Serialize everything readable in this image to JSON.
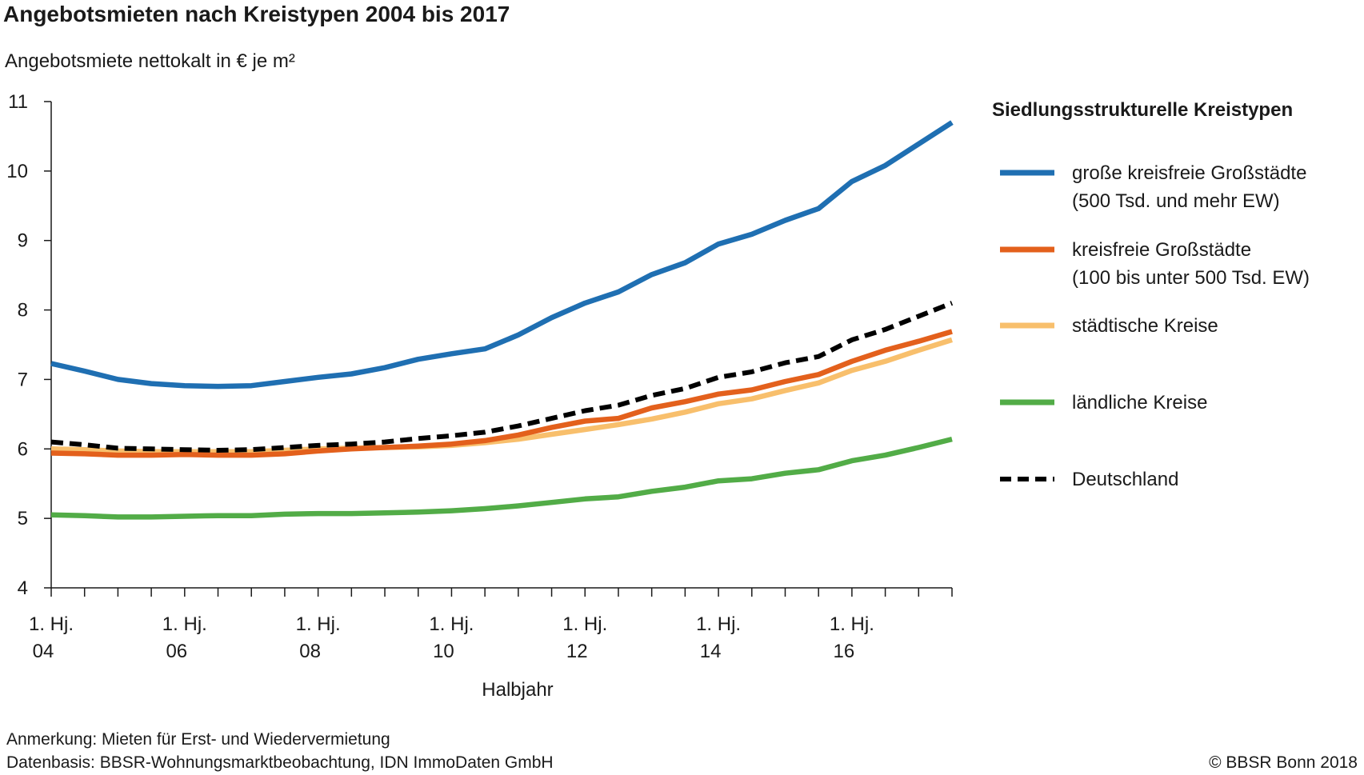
{
  "chart_data": {
    "type": "line",
    "title": "Angebotsmieten nach Kreistypen 2004 bis 2017",
    "ylabel": "Angebotsmiete nettokalt in € je m²",
    "xlabel": "Halbjahr",
    "ylim": [
      4,
      11
    ],
    "yticks": [
      "4",
      "5",
      "6",
      "7",
      "8",
      "9",
      "10",
      "11"
    ],
    "x_period_count": 28,
    "x_tick_labels": [
      {
        "index": 0,
        "line1": "1. Hj.",
        "line2": "04"
      },
      {
        "index": 4,
        "line1": "1. Hj.",
        "line2": "06"
      },
      {
        "index": 8,
        "line1": "1. Hj.",
        "line2": "08"
      },
      {
        "index": 12,
        "line1": "1. Hj.",
        "line2": "10"
      },
      {
        "index": 16,
        "line1": "1. Hj.",
        "line2": "12"
      },
      {
        "index": 20,
        "line1": "1. Hj.",
        "line2": "14"
      },
      {
        "index": 24,
        "line1": "1. Hj.",
        "line2": "16"
      }
    ],
    "grid": false,
    "legend_title": "Siedlungsstrukturelle Kreistypen",
    "legend_position": "right",
    "series": [
      {
        "name": "große kreisfreie Großstädte",
        "name_line2": "(500 Tsd. und mehr EW)",
        "color": "#1f6fb2",
        "style": "solid",
        "values": [
          7.23,
          7.12,
          7.0,
          6.94,
          6.91,
          6.9,
          6.91,
          6.97,
          7.03,
          7.08,
          7.17,
          7.29,
          7.37,
          7.44,
          7.64,
          7.89,
          8.1,
          8.26,
          8.51,
          8.68,
          8.95,
          9.09,
          9.29,
          9.46,
          9.85,
          10.08,
          10.39,
          10.7
        ]
      },
      {
        "name": "kreisfreie Großstädte",
        "name_line2": "(100 bis unter 500 Tsd. EW)",
        "color": "#e3601c",
        "style": "solid",
        "values": [
          5.94,
          5.93,
          5.91,
          5.91,
          5.92,
          5.91,
          5.91,
          5.93,
          5.97,
          6.0,
          6.02,
          6.04,
          6.07,
          6.12,
          6.2,
          6.31,
          6.4,
          6.44,
          6.59,
          6.68,
          6.79,
          6.85,
          6.97,
          7.07,
          7.26,
          7.42,
          7.55,
          7.69
        ]
      },
      {
        "name": "städtische Kreise",
        "name_line2": "",
        "color": "#f8bf6c",
        "style": "solid",
        "values": [
          6.0,
          5.99,
          5.97,
          5.96,
          5.96,
          5.96,
          5.96,
          5.98,
          6.0,
          6.01,
          6.02,
          6.03,
          6.05,
          6.09,
          6.14,
          6.21,
          6.28,
          6.35,
          6.43,
          6.53,
          6.65,
          6.72,
          6.84,
          6.95,
          7.13,
          7.26,
          7.42,
          7.57
        ]
      },
      {
        "name": "ländliche Kreise",
        "name_line2": "",
        "color": "#52ac47",
        "style": "solid",
        "values": [
          5.05,
          5.04,
          5.02,
          5.02,
          5.03,
          5.04,
          5.04,
          5.06,
          5.07,
          5.07,
          5.08,
          5.09,
          5.11,
          5.14,
          5.18,
          5.23,
          5.28,
          5.31,
          5.39,
          5.45,
          5.54,
          5.57,
          5.65,
          5.7,
          5.83,
          5.91,
          6.02,
          6.14
        ]
      },
      {
        "name": "Deutschland",
        "name_line2": "",
        "color": "#000000",
        "style": "dashed",
        "values": [
          6.1,
          6.06,
          6.01,
          6.0,
          5.99,
          5.98,
          5.99,
          6.02,
          6.05,
          6.07,
          6.1,
          6.15,
          6.19,
          6.24,
          6.33,
          6.44,
          6.55,
          6.63,
          6.77,
          6.87,
          7.03,
          7.11,
          7.24,
          7.33,
          7.57,
          7.72,
          7.91,
          8.1
        ]
      }
    ]
  },
  "footer": {
    "note": "Anmerkung: Mieten für Erst- und Wiedervermietung",
    "source": "Datenbasis: BBSR-Wohnungsmarktbeobachtung, IDN ImmoDaten GmbH",
    "copyright": "© BBSR Bonn 2018"
  }
}
